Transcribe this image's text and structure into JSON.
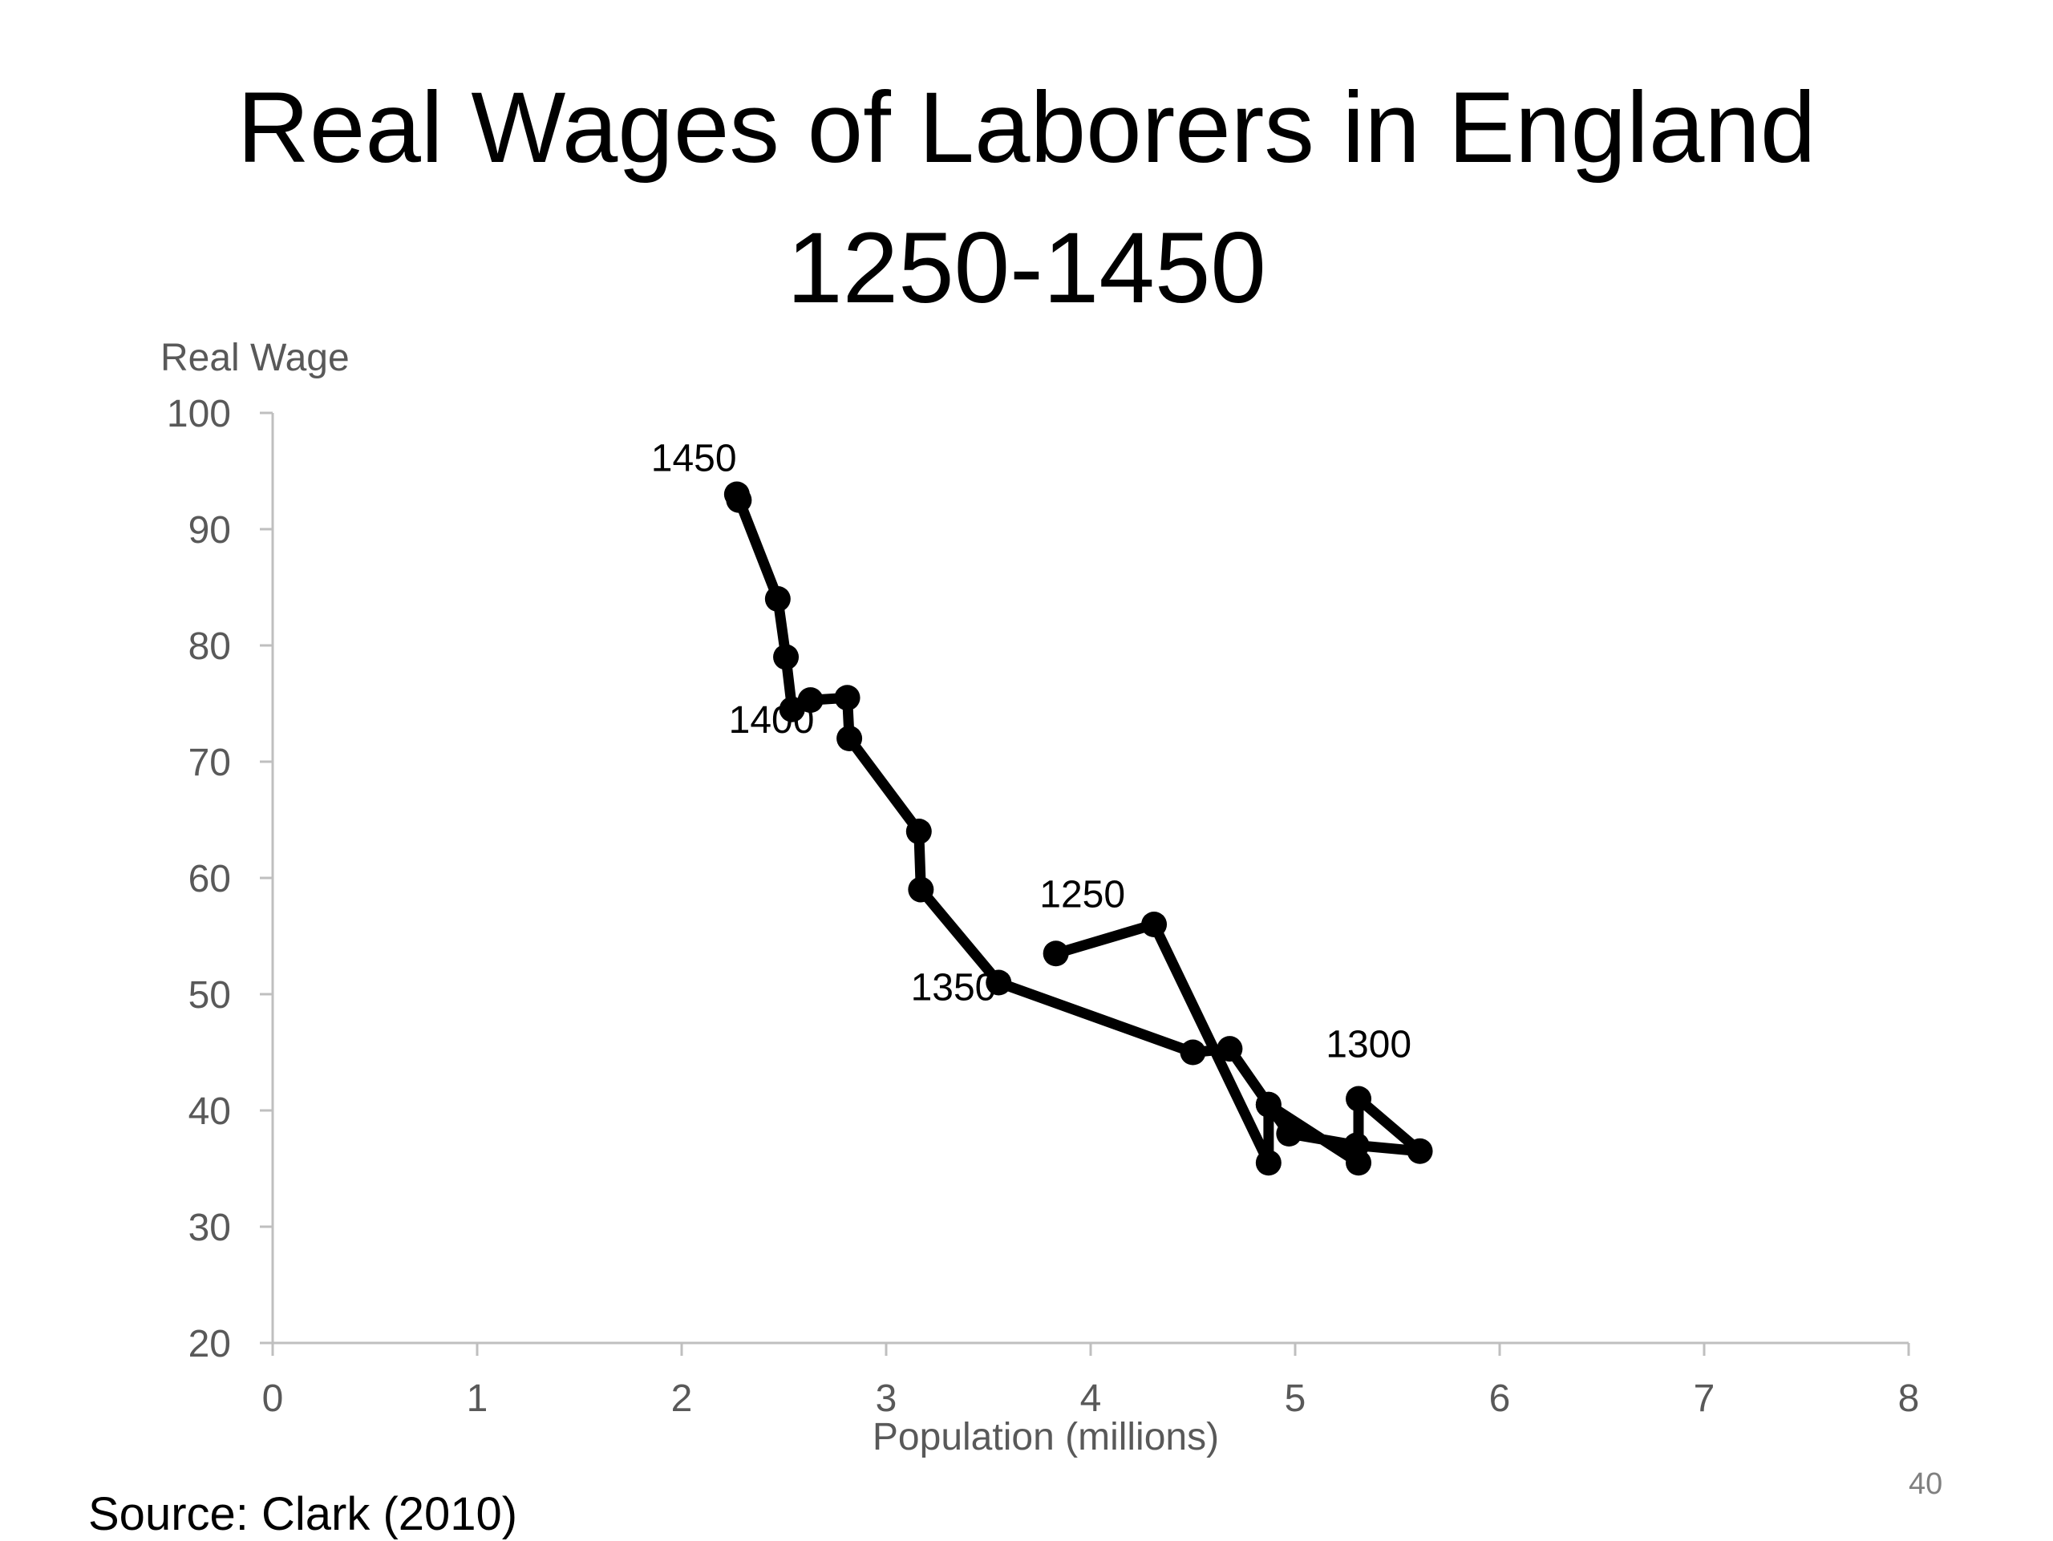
{
  "title_line1": "Real Wages of Laborers in England",
  "title_line2": "1250-1450",
  "source": "Source: Clark (2010)",
  "page_number": "40",
  "chart_data": {
    "type": "line",
    "xlabel": "Population (millions)",
    "ylabel": "Real Wage",
    "xlim": [
      0,
      8
    ],
    "ylim": [
      20,
      100
    ],
    "xticks": [
      "0",
      "1",
      "2",
      "3",
      "4",
      "5",
      "6",
      "7",
      "8"
    ],
    "yticks": [
      "20",
      "30",
      "40",
      "50",
      "60",
      "70",
      "80",
      "90",
      "100"
    ],
    "grid": false,
    "line_color": "#000000",
    "points": [
      {
        "x": 3.83,
        "y": 53.5
      },
      {
        "x": 4.31,
        "y": 56.0
      },
      {
        "x": 4.87,
        "y": 35.5
      },
      {
        "x": 4.87,
        "y": 40.5
      },
      {
        "x": 4.97,
        "y": 38.0
      },
      {
        "x": 5.3,
        "y": 37.0
      },
      {
        "x": 5.61,
        "y": 36.5
      },
      {
        "x": 5.31,
        "y": 41.0
      },
      {
        "x": 5.31,
        "y": 35.5
      },
      {
        "x": 4.87,
        "y": 40.5
      },
      {
        "x": 4.68,
        "y": 45.3
      },
      {
        "x": 4.5,
        "y": 45.0
      },
      {
        "x": 3.55,
        "y": 51.0
      },
      {
        "x": 3.17,
        "y": 59.0
      },
      {
        "x": 3.16,
        "y": 64.0
      },
      {
        "x": 2.82,
        "y": 72.0
      },
      {
        "x": 2.81,
        "y": 75.5
      },
      {
        "x": 2.63,
        "y": 75.3
      },
      {
        "x": 2.54,
        "y": 74.5
      },
      {
        "x": 2.51,
        "y": 79.0
      },
      {
        "x": 2.47,
        "y": 84.0
      },
      {
        "x": 2.27,
        "y": 93.0
      },
      {
        "x": 2.28,
        "y": 92.5
      }
    ],
    "annotations": [
      {
        "text": "1450",
        "x": 1.85,
        "y": 95.0
      },
      {
        "text": "1400",
        "x": 2.23,
        "y": 72.5
      },
      {
        "text": "1250",
        "x": 3.75,
        "y": 57.5
      },
      {
        "text": "1350",
        "x": 3.12,
        "y": 49.5
      },
      {
        "text": "1300",
        "x": 5.15,
        "y": 44.6
      }
    ]
  }
}
